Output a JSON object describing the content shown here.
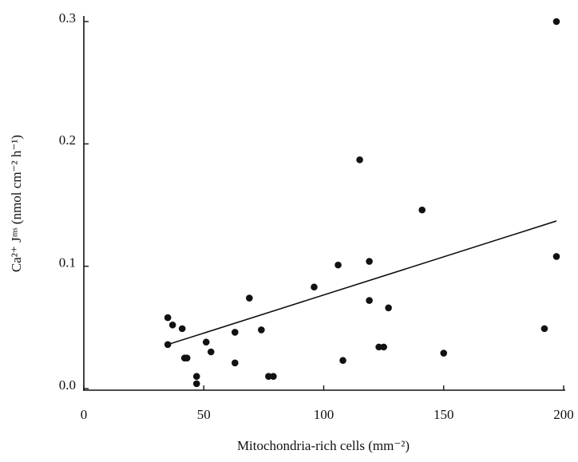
{
  "chart_data": {
    "type": "scatter",
    "xlabel": "Mitochondria-rich cells (mm⁻²)",
    "ylabel": "Ca²⁺ Jᵐˢ (nmol cm⁻² h⁻¹)",
    "x": [
      35,
      35,
      37,
      41,
      42,
      43,
      47,
      47,
      51,
      53,
      63,
      63,
      69,
      74,
      77,
      79,
      96,
      106,
      108,
      115,
      119,
      119,
      123,
      125,
      127,
      141,
      150,
      192,
      197,
      197
    ],
    "values": [
      0.058,
      0.036,
      0.052,
      0.049,
      0.025,
      0.025,
      0.01,
      0.004,
      0.038,
      0.03,
      0.046,
      0.021,
      0.074,
      0.048,
      0.01,
      0.01,
      0.083,
      0.101,
      0.023,
      0.187,
      0.104,
      0.072,
      0.034,
      0.034,
      0.066,
      0.146,
      0.029,
      0.049,
      0.108,
      0.3
    ],
    "color": "#111111",
    "trendline": {
      "x": [
        35,
        197
      ],
      "y": [
        0.036,
        0.137
      ]
    },
    "xlim": [
      0,
      200
    ],
    "xticks": [
      0,
      50,
      100,
      150,
      200
    ],
    "ylim": [
      0,
      0.3
    ],
    "yticks": [
      {
        "value": 0,
        "label": "0.0"
      },
      0.1,
      0.2,
      0.3
    ],
    "grid": false
  }
}
